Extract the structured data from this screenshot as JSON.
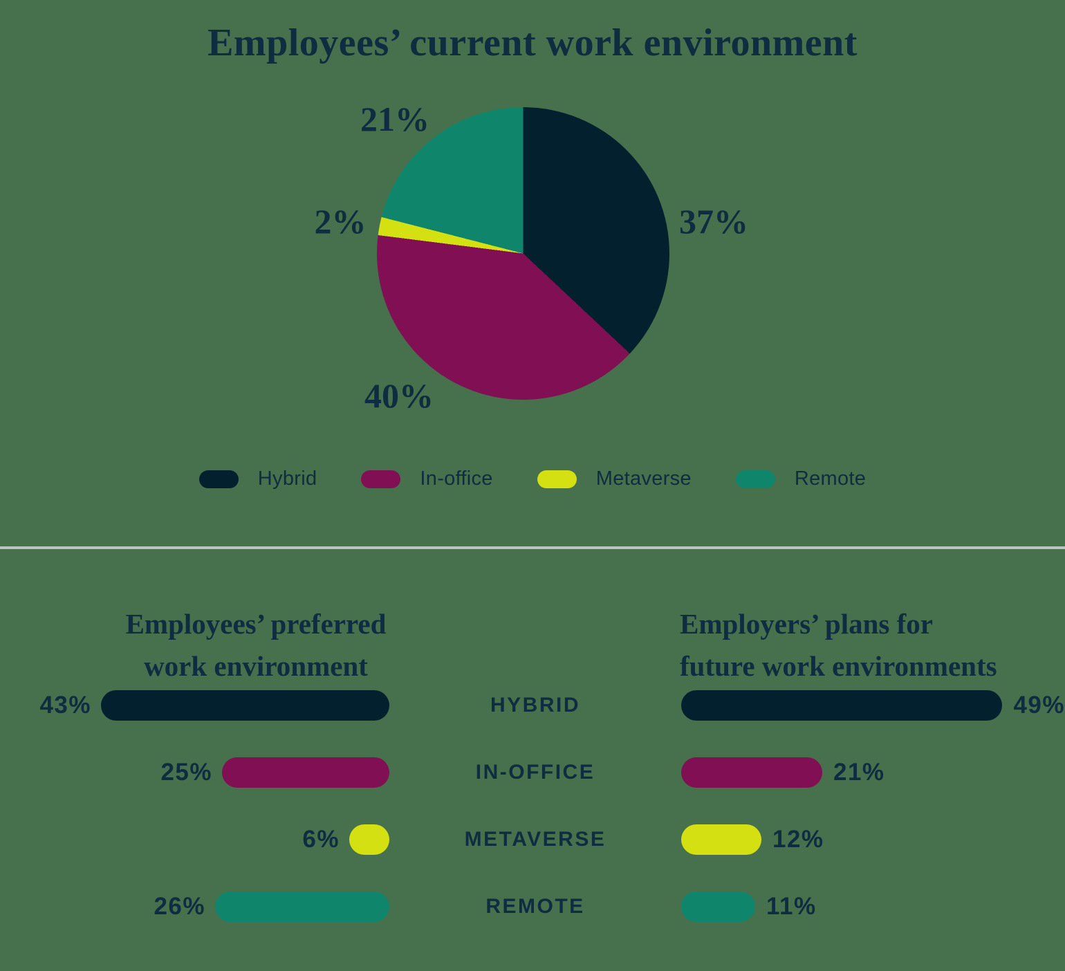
{
  "page": {
    "background_color": "#47704D",
    "divider_color": "#BAC5C0",
    "text_color": "#0F2D40"
  },
  "colors": {
    "navy": "#03202F",
    "magenta": "#801053",
    "yellow": "#D5E012",
    "teal": "#0F856C"
  },
  "pie_chart": {
    "title": "Employees’ current work environment",
    "slices": [
      {
        "label": "Hybrid",
        "value": 37,
        "display": "37%",
        "color_key": "navy"
      },
      {
        "label": "In-office",
        "value": 40,
        "display": "40%",
        "color_key": "magenta"
      },
      {
        "label": "Metaverse",
        "value": 2,
        "display": "2%",
        "color_key": "yellow"
      },
      {
        "label": "Remote",
        "value": 21,
        "display": "21%",
        "color_key": "teal"
      }
    ],
    "legend": [
      {
        "label": "Hybrid",
        "color_key": "navy"
      },
      {
        "label": "In-office",
        "color_key": "magenta"
      },
      {
        "label": "Metaverse",
        "color_key": "yellow"
      },
      {
        "label": "Remote",
        "color_key": "teal"
      }
    ]
  },
  "bar_charts": {
    "left_title_line1": "Employees’ preferred",
    "left_title_line2": "work environment",
    "right_title_line1": "Employers’ plans for",
    "right_title_line2": "future work environments",
    "rows": [
      {
        "category": "HYBRID",
        "left_value": 43,
        "left_display": "43%",
        "right_value": 49,
        "right_display": "49%",
        "color_key": "navy"
      },
      {
        "category": "IN-OFFICE",
        "left_value": 25,
        "left_display": "25%",
        "right_value": 21,
        "right_display": "21%",
        "color_key": "magenta"
      },
      {
        "category": "METAVERSE",
        "left_value": 6,
        "left_display": "6%",
        "right_value": 12,
        "right_display": "12%",
        "color_key": "yellow"
      },
      {
        "category": "REMOTE",
        "left_value": 26,
        "left_display": "26%",
        "right_value": 11,
        "right_display": "11%",
        "color_key": "teal"
      }
    ]
  },
  "chart_data": [
    {
      "type": "pie",
      "title": "Employees’ current work environment",
      "labels": [
        "Hybrid",
        "In-office",
        "Metaverse",
        "Remote"
      ],
      "values": [
        37,
        40,
        2,
        21
      ],
      "data_labels": [
        "37%",
        "40%",
        "2%",
        "21%"
      ],
      "unit": "percent",
      "colors": [
        "#03202F",
        "#801053",
        "#D5E012",
        "#0F856C"
      ],
      "start_angle": "top",
      "direction": "clockwise",
      "legend_position": "bottom"
    },
    {
      "type": "bar",
      "orientation": "horizontal",
      "title": "Employees’ preferred work environment",
      "categories": [
        "Hybrid",
        "In-office",
        "Metaverse",
        "Remote"
      ],
      "values": [
        43,
        25,
        6,
        26
      ],
      "unit": "percent",
      "bar_direction": "right-to-left",
      "value_label_position": "left-of-bar",
      "colors": [
        "#03202F",
        "#801053",
        "#D5E012",
        "#0F856C"
      ]
    },
    {
      "type": "bar",
      "orientation": "horizontal",
      "title": "Employers’ plans for future work environments",
      "categories": [
        "Hybrid",
        "In-office",
        "Metaverse",
        "Remote"
      ],
      "values": [
        49,
        21,
        12,
        11
      ],
      "unit": "percent",
      "bar_direction": "left-to-right",
      "value_label_position": "right-of-bar",
      "colors": [
        "#03202F",
        "#801053",
        "#D5E012",
        "#0F856C"
      ]
    }
  ]
}
